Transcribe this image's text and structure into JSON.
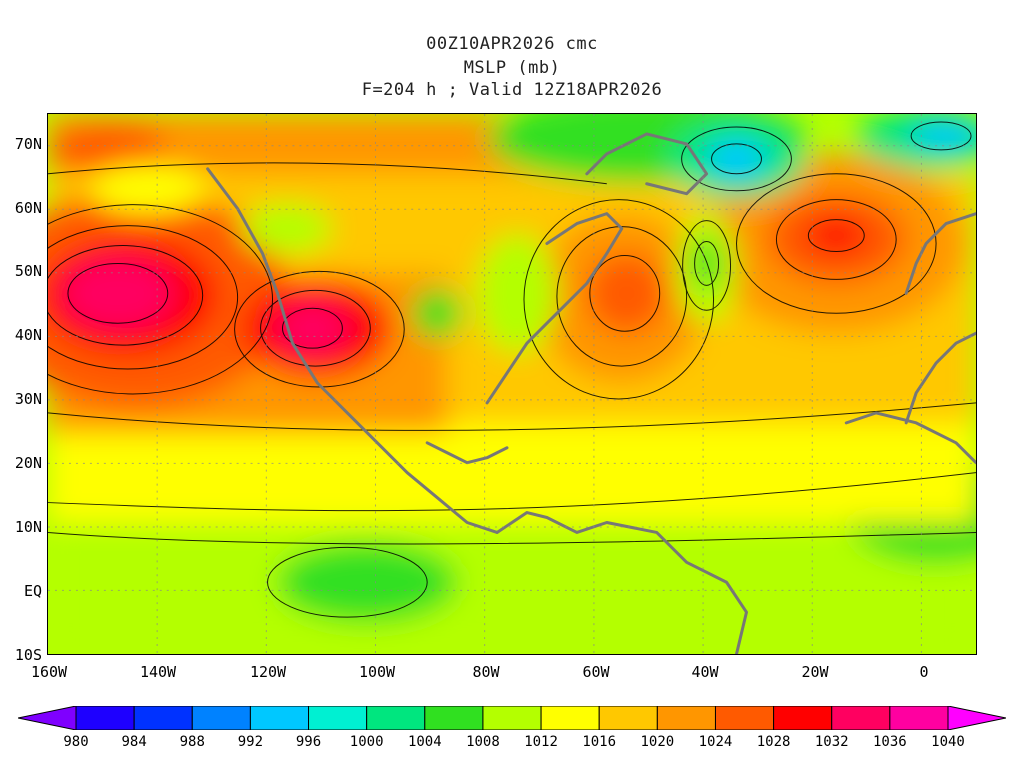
{
  "title": {
    "line1": "00Z10APR2026 cmc",
    "line2": "MSLP (mb)",
    "line3": "F=204 h ; Valid 12Z18APR2026"
  },
  "axes": {
    "lat_labels": [
      "70N",
      "60N",
      "50N",
      "40N",
      "30N",
      "20N",
      "10N",
      "EQ",
      "10S"
    ],
    "lon_labels": [
      "160W",
      "140W",
      "120W",
      "100W",
      "80W",
      "60W",
      "40W",
      "20W",
      "0"
    ]
  },
  "colorbar": {
    "labels": [
      "980",
      "984",
      "988",
      "992",
      "996",
      "1000",
      "1004",
      "1008",
      "1012",
      "1016",
      "1020",
      "1024",
      "1028",
      "1032",
      "1036",
      "1040"
    ],
    "colors": [
      "#7f00ff",
      "#1e00ff",
      "#0032ff",
      "#0082ff",
      "#00c8ff",
      "#00f0d2",
      "#00e67f",
      "#30e020",
      "#b4ff00",
      "#ffff00",
      "#ffc800",
      "#ff9600",
      "#ff5a00",
      "#ff0000",
      "#ff0060",
      "#ff00a0",
      "#ff00ff"
    ]
  },
  "map": {
    "region": "North Atlantic / North America / Eastern Pacific",
    "lat_range": [
      -10,
      75
    ],
    "lon_range": [
      -160,
      10
    ],
    "highs": [
      {
        "lat": 46,
        "lon": -152,
        "value_mb": 1038
      },
      {
        "lat": 41,
        "lon": -111,
        "value_mb": 1033
      },
      {
        "lat": 55,
        "lon": -15,
        "value_mb": 1031
      },
      {
        "lat": 46,
        "lon": -55,
        "value_mb": 1029
      }
    ],
    "lows": [
      {
        "lat": 67,
        "lon": -35,
        "value_mb": 994
      },
      {
        "lat": 72,
        "lon": 5,
        "value_mb": 996
      },
      {
        "lat": 51,
        "lon": -41,
        "value_mb": 1007
      },
      {
        "lat": 71,
        "lon": -55,
        "value_mb": 1002
      }
    ]
  }
}
